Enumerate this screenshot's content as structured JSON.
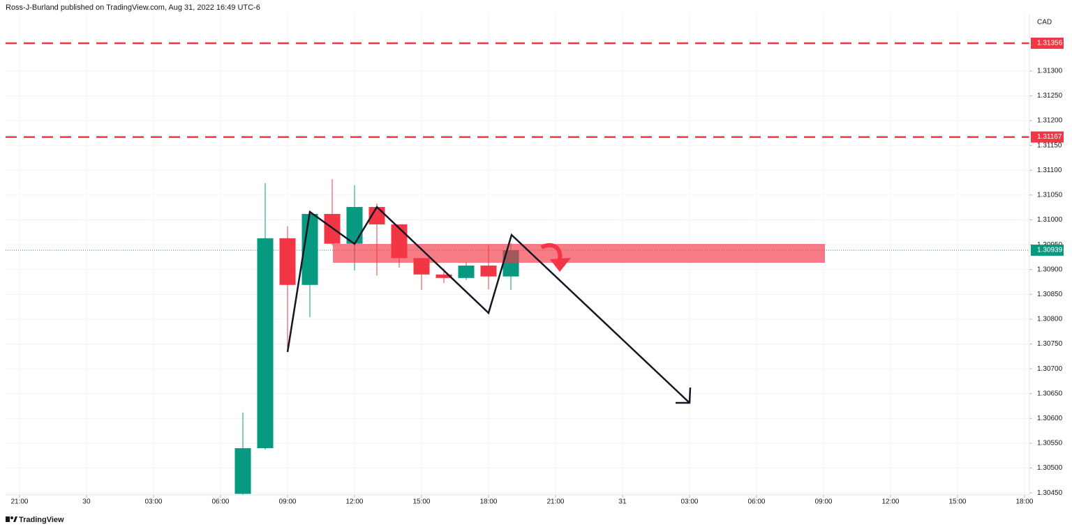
{
  "chart_data": {
    "type": "candlestick",
    "title": "Ross-J-Burland published on TradingView.com, Aug 31, 2022 16:49 UTC-6",
    "currency": "CAD",
    "watermark": "TradingView",
    "up_color": "#089981",
    "down_color": "#f23645",
    "x": [
      10,
      11,
      12,
      13,
      14,
      15,
      16,
      17,
      18,
      19,
      20,
      21,
      22
    ],
    "open": [
      1.30448,
      1.3054,
      1.30963,
      1.30869,
      1.31012,
      1.30952,
      1.31026,
      1.30991,
      1.30923,
      1.3089,
      1.30883,
      1.30908,
      1.30886
    ],
    "high": [
      1.30612,
      1.31074,
      1.30987,
      1.31012,
      1.31082,
      1.3107,
      1.31033,
      1.30991,
      1.30923,
      1.30902,
      1.30916,
      1.30949,
      1.30953
    ],
    "low": [
      1.30445,
      1.30537,
      1.30734,
      1.30804,
      1.30949,
      1.30898,
      1.30888,
      1.30904,
      1.30859,
      1.30873,
      1.30879,
      1.3086,
      1.30859
    ],
    "close": [
      1.3054,
      1.30963,
      1.30869,
      1.31012,
      1.30952,
      1.31026,
      1.30991,
      1.30923,
      1.3089,
      1.30883,
      1.30908,
      1.30886,
      1.30939
    ],
    "xlim": [
      -0.625,
      45.219
    ],
    "ylim": [
      1.30446,
      1.31415
    ],
    "grid": true,
    "xticks": [
      {
        "value": 0,
        "label": "21:00"
      },
      {
        "value": 3,
        "label": "30"
      },
      {
        "value": 6,
        "label": "03:00"
      },
      {
        "value": 9,
        "label": "06:00"
      },
      {
        "value": 12,
        "label": "09:00"
      },
      {
        "value": 15,
        "label": "12:00"
      },
      {
        "value": 18,
        "label": "15:00"
      },
      {
        "value": 21,
        "label": "18:00"
      },
      {
        "value": 24,
        "label": "21:00"
      },
      {
        "value": 27,
        "label": "31"
      },
      {
        "value": 30,
        "label": "03:00"
      },
      {
        "value": 33,
        "label": "06:00"
      },
      {
        "value": 36,
        "label": "09:00"
      },
      {
        "value": 39,
        "label": "12:00"
      },
      {
        "value": 42,
        "label": "15:00"
      },
      {
        "value": 45,
        "label": "18:00"
      }
    ],
    "yticks": [
      {
        "value": 1.313,
        "label": "1.31300"
      },
      {
        "value": 1.3125,
        "label": "1.31250"
      },
      {
        "value": 1.312,
        "label": "1.31200"
      },
      {
        "value": 1.3115,
        "label": "1.31150"
      },
      {
        "value": 1.311,
        "label": "1.31100"
      },
      {
        "value": 1.3105,
        "label": "1.31050"
      },
      {
        "value": 1.31,
        "label": "1.31000"
      },
      {
        "value": 1.3095,
        "label": "1.30950"
      },
      {
        "value": 1.309,
        "label": "1.30900"
      },
      {
        "value": 1.3085,
        "label": "1.30850"
      },
      {
        "value": 1.308,
        "label": "1.30800"
      },
      {
        "value": 1.3075,
        "label": "1.30750"
      },
      {
        "value": 1.307,
        "label": "1.30700"
      },
      {
        "value": 1.3065,
        "label": "1.30650"
      },
      {
        "value": 1.306,
        "label": "1.30600"
      },
      {
        "value": 1.3055,
        "label": "1.30550"
      },
      {
        "value": 1.305,
        "label": "1.30500"
      },
      {
        "value": 1.3045,
        "label": "1.30450"
      }
    ],
    "hlines": [
      1.31356,
      1.31167
    ],
    "hline_color": "#f23645",
    "last_price": 1.30939,
    "last_color": "#089981"
  }
}
